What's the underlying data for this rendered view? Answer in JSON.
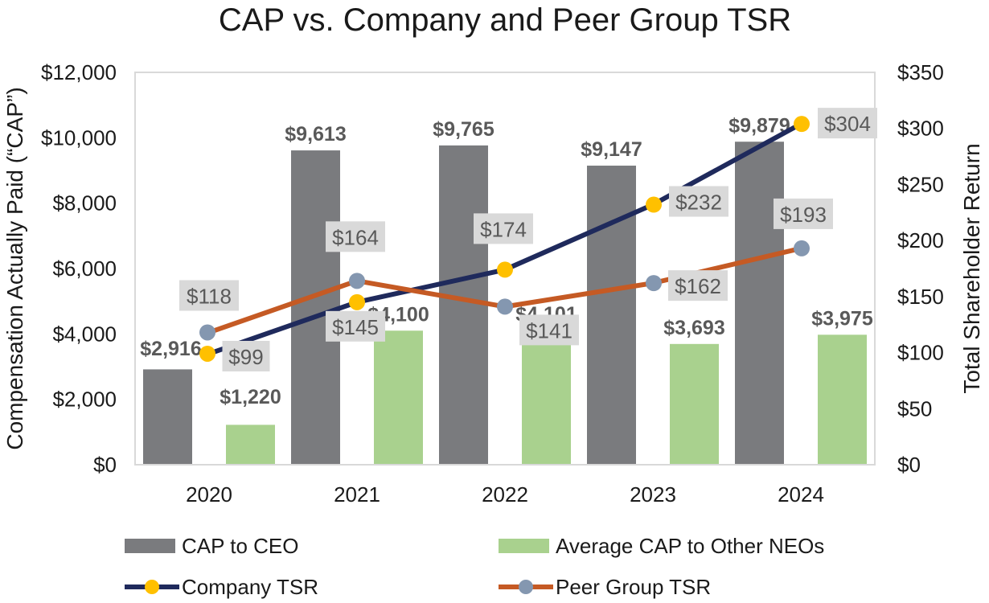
{
  "chart_data": {
    "type": "bar",
    "title": "CAP vs. Company and Peer Group TSR",
    "categories": [
      "2020",
      "2021",
      "2022",
      "2023",
      "2024"
    ],
    "ylabel": "Compensation Actually Paid (“CAP”)",
    "y2label": "Total Shareholder Return",
    "ylim": [
      0,
      12000
    ],
    "y2lim": [
      0,
      350
    ],
    "y_ticks": [
      "$0",
      "$2,000",
      "$4,000",
      "$6,000",
      "$8,000",
      "$10,000",
      "$12,000"
    ],
    "y2_ticks": [
      "$0",
      "$50",
      "$100",
      "$150",
      "$200",
      "$250",
      "$300",
      "$350"
    ],
    "series": [
      {
        "name": "CAP to CEO",
        "kind": "bar",
        "axis": "left",
        "color": "#7a7b7e",
        "values": [
          2916,
          9613,
          9765,
          9147,
          9879
        ],
        "labels": [
          "$2,916",
          "$9,613",
          "$9,765",
          "$9,147",
          "$9,879"
        ]
      },
      {
        "name": "Average CAP to Other NEOs",
        "kind": "bar",
        "axis": "left",
        "color": "#a9d18e",
        "values": [
          1220,
          4100,
          4101,
          3693,
          3975
        ],
        "labels": [
          "$1,220",
          "$4,100",
          "$4,101",
          "$3,693",
          "$3,975"
        ]
      },
      {
        "name": "Company TSR",
        "kind": "line",
        "axis": "right",
        "color": "#1f2a5c",
        "marker_color": "#ffc000",
        "values": [
          99,
          145,
          174,
          232,
          304
        ],
        "labels": [
          "$99",
          "$145",
          "$174",
          "$232",
          "$304"
        ]
      },
      {
        "name": "Peer Group TSR",
        "kind": "line",
        "axis": "right",
        "color": "#c55a24",
        "marker_color": "#8497b0",
        "values": [
          118,
          164,
          141,
          162,
          193
        ],
        "labels": [
          "$118",
          "$164",
          "$141",
          "$162",
          "$193"
        ]
      }
    ],
    "legend": "bottom",
    "grid": false
  }
}
